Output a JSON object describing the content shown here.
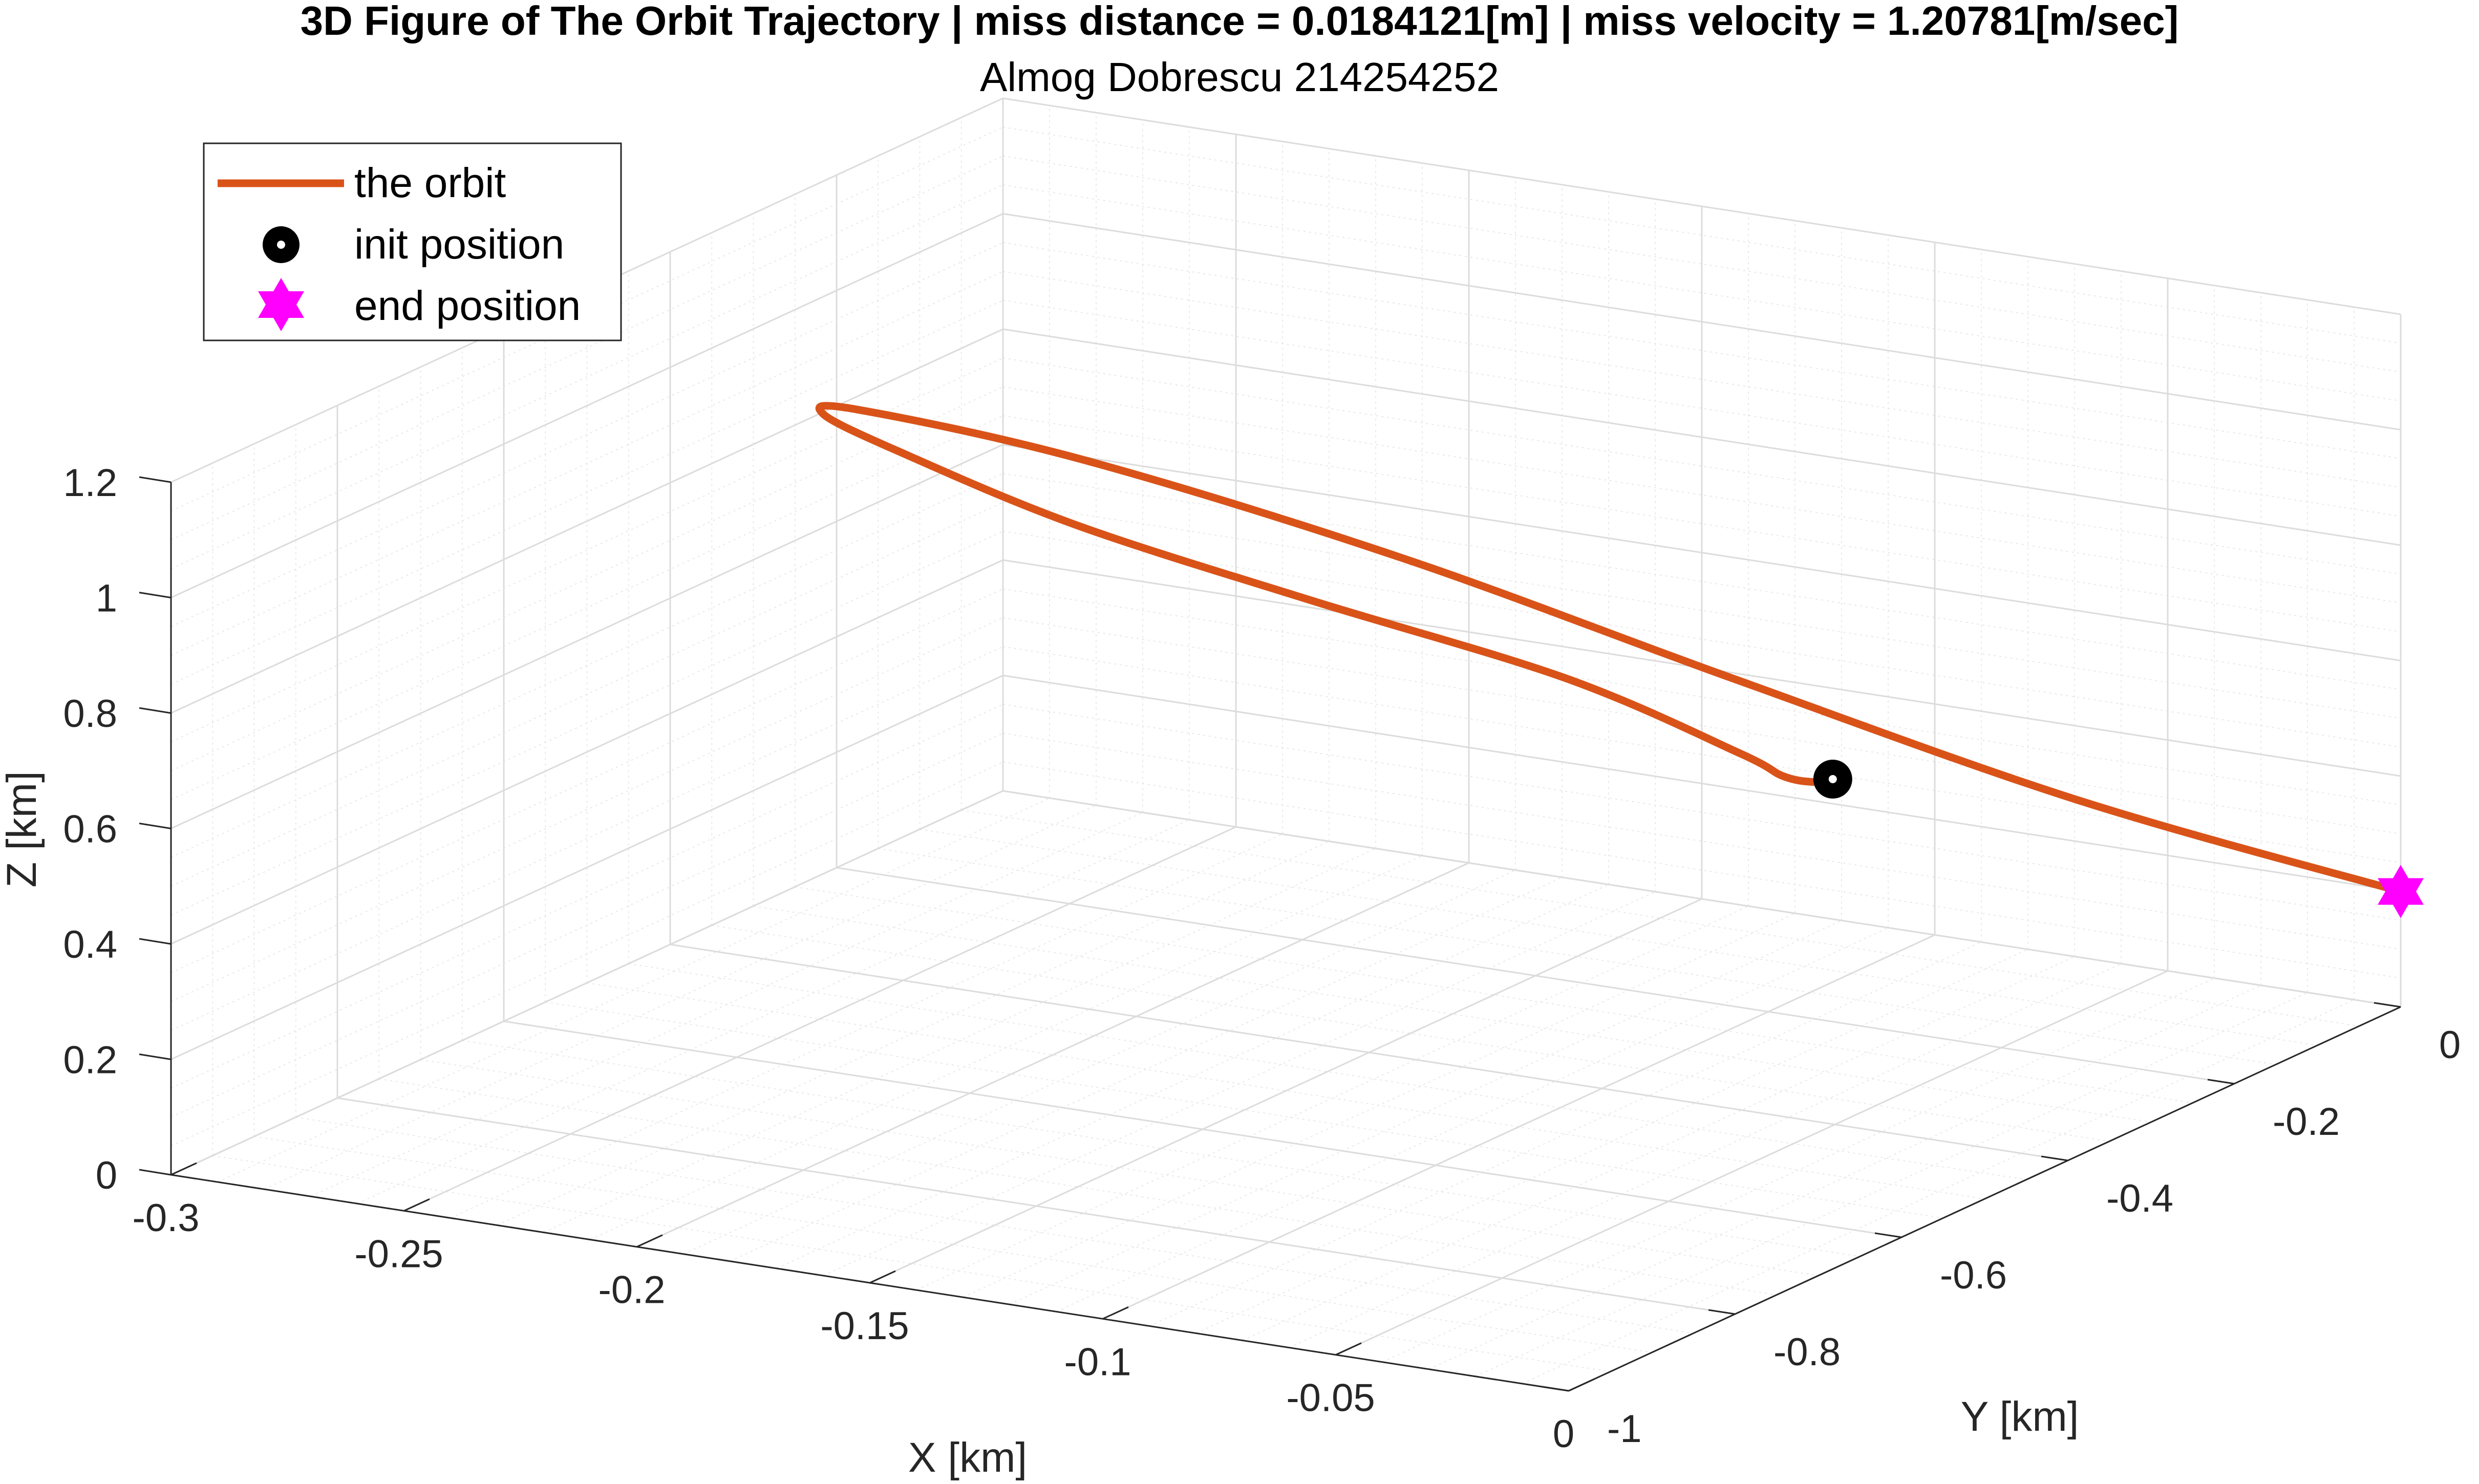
{
  "chart_data": {
    "type": "line",
    "projection": "3d",
    "title": "3D Figure of The Orbit Trajectory | miss distance = 0.0184121[m] | miss velocity = 1.20781[m/sec]",
    "subtitle": "Almog Dobrescu 214254252",
    "xlabel": "X [km]",
    "ylabel": "Y [km]",
    "zlabel": "Z [km]",
    "xlim": [
      -0.3,
      0
    ],
    "ylim": [
      -1,
      0
    ],
    "zlim": [
      0,
      1.2
    ],
    "x_ticks": [
      "-0.3",
      "-0.25",
      "-0.2",
      "-0.15",
      "-0.1",
      "-0.05",
      "0"
    ],
    "y_ticks": [
      "-1",
      "-0.8",
      "-0.6",
      "-0.4",
      "-0.2",
      "0"
    ],
    "z_ticks": [
      "0",
      "0.2",
      "0.4",
      "0.6",
      "0.8",
      "1",
      "1.2"
    ],
    "grid": true,
    "minor_grid": true,
    "legend_position": "top-left",
    "series": [
      {
        "name": "the orbit",
        "color": "#D95319",
        "points": [
          [
            0,
            0,
            0.2
          ],
          [
            -0.05,
            -0.11,
            0.37
          ],
          [
            -0.102,
            -0.235,
            0.6
          ],
          [
            -0.15,
            -0.36,
            0.83
          ],
          [
            -0.195,
            -0.49,
            1.03
          ],
          [
            -0.225,
            -0.595,
            1.15
          ],
          [
            -0.227,
            -0.625,
            1.16
          ],
          [
            -0.21,
            -0.63,
            1.12
          ],
          [
            -0.18,
            -0.585,
            1.0
          ],
          [
            -0.142,
            -0.515,
            0.87
          ],
          [
            -0.098,
            -0.455,
            0.75
          ],
          [
            -0.066,
            -0.425,
            0.64
          ],
          [
            -0.057,
            -0.423,
            0.61
          ],
          [
            -0.05,
            -0.425,
            0.61
          ],
          [
            -0.046,
            -0.425,
            0.62
          ]
        ]
      },
      {
        "name": "init position",
        "color": "#000000",
        "marker": "circle",
        "points": [
          [
            -0.046,
            -0.425,
            0.62
          ]
        ]
      },
      {
        "name": "end position",
        "color": "#FF00FF",
        "marker": "hexagram",
        "points": [
          [
            0,
            0,
            0.2
          ]
        ]
      }
    ]
  }
}
